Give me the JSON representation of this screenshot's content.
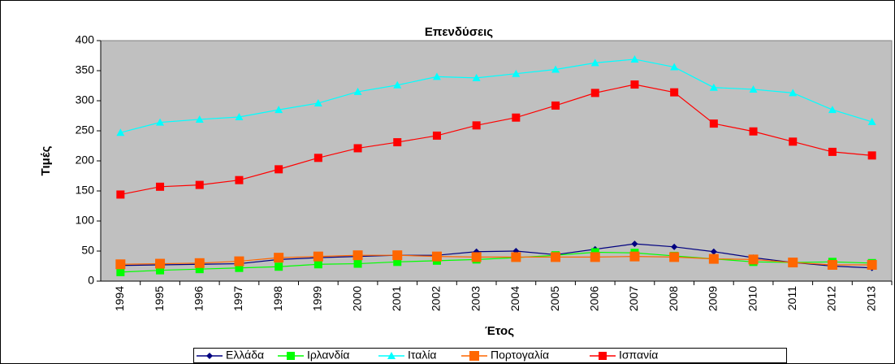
{
  "chart_data": {
    "type": "line",
    "title": "Επενδύσεις",
    "y_label": "Τιμές",
    "x_label": "Έτος",
    "categories": [
      "1994",
      "1995",
      "1996",
      "1997",
      "1998",
      "1999",
      "2000",
      "2001",
      "2002",
      "2003",
      "2004",
      "2005",
      "2006",
      "2007",
      "2008",
      "2009",
      "2010",
      "2011",
      "2012",
      "2013"
    ],
    "series": [
      {
        "name": "Ελλάδα",
        "color": "#000080",
        "marker": "diamond",
        "values": [
          26,
          27,
          28,
          29,
          36,
          39,
          41,
          43,
          43,
          49,
          50,
          44,
          53,
          62,
          57,
          49,
          39,
          31,
          25,
          22
        ]
      },
      {
        "name": "Ιρλανδία",
        "color": "#00ff00",
        "marker": "square",
        "values": [
          15,
          18,
          20,
          22,
          24,
          28,
          29,
          32,
          34,
          36,
          39,
          43,
          48,
          47,
          42,
          37,
          32,
          31,
          32,
          30
        ]
      },
      {
        "name": "Ιταλία",
        "color": "#00ffff",
        "marker": "triangle",
        "values": [
          247,
          264,
          269,
          273,
          285,
          296,
          315,
          326,
          340,
          338,
          345,
          352,
          363,
          369,
          356,
          322,
          319,
          313,
          285,
          265
        ]
      },
      {
        "name": "Πορτογαλία",
        "color": "#ff6600",
        "marker": "square",
        "values": [
          28,
          29,
          30,
          33,
          39,
          41,
          43,
          43,
          41,
          40,
          40,
          40,
          40,
          41,
          40,
          37,
          36,
          31,
          27,
          27
        ]
      },
      {
        "name": "Ισπανία",
        "color": "#ff0000",
        "marker": "square",
        "values": [
          144,
          157,
          160,
          168,
          186,
          205,
          221,
          231,
          242,
          259,
          272,
          292,
          313,
          327,
          314,
          262,
          249,
          232,
          215,
          209
        ]
      }
    ],
    "ylim": [
      0,
      400
    ],
    "yticks": [
      0,
      50,
      100,
      150,
      200,
      250,
      300,
      350,
      400
    ],
    "grid": false,
    "plot_background": "#c0c0c0",
    "legend": "bottom"
  }
}
